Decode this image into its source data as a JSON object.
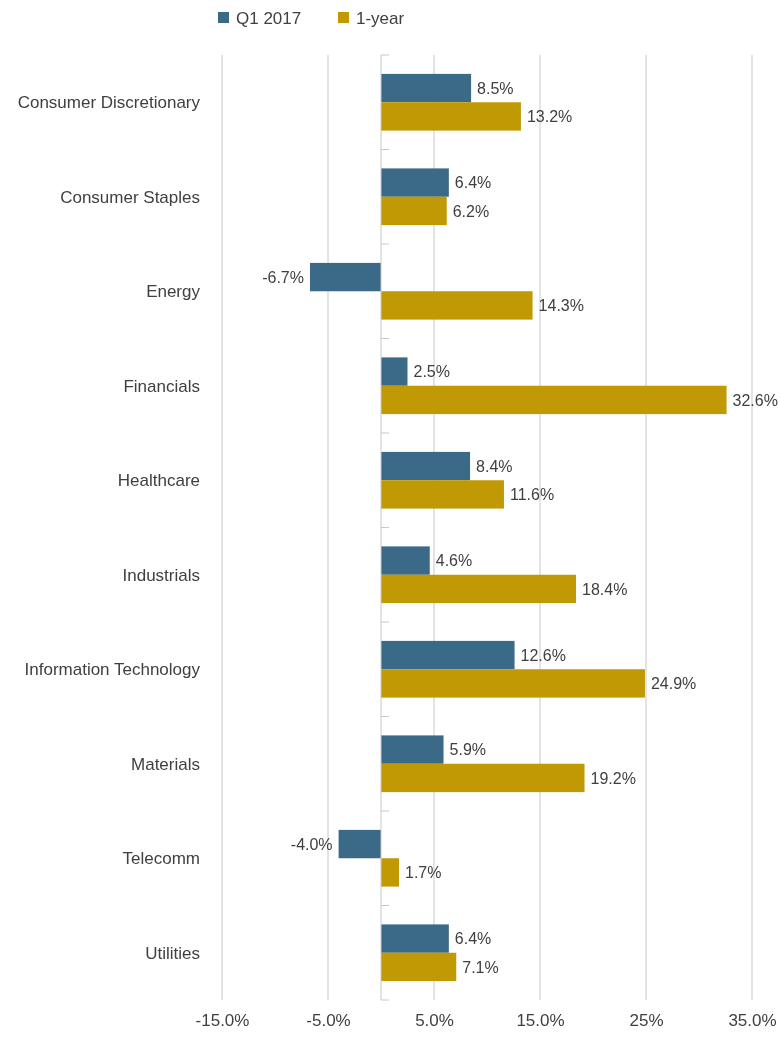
{
  "chart_data": {
    "type": "bar",
    "orientation": "horizontal",
    "categories": [
      "Consumer Discretionary",
      "Consumer Staples",
      "Energy",
      "Financials",
      "Healthcare",
      "Industrials",
      "Information Technology",
      "Materials",
      "Telecomm",
      "Utilities"
    ],
    "series": [
      {
        "name": "Q1 2017",
        "color": "#3b6a89",
        "values": [
          8.5,
          6.4,
          -6.7,
          2.5,
          8.4,
          4.6,
          12.6,
          5.9,
          -4.0,
          6.4
        ],
        "value_labels": [
          "8.5%",
          "6.4%",
          "-6.7%",
          "2.5%",
          "8.4%",
          "4.6%",
          "12.6%",
          "5.9%",
          "-4.0%",
          "6.4%"
        ]
      },
      {
        "name": "1-year",
        "color": "#c09904",
        "values": [
          13.2,
          6.2,
          14.3,
          32.6,
          11.6,
          18.4,
          24.9,
          19.2,
          1.7,
          7.1
        ],
        "value_labels": [
          "13.2%",
          "6.2%",
          "14.3%",
          "32.6%",
          "11.6%",
          "18.4%",
          "24.9%",
          "19.2%",
          "1.7%",
          "7.1%"
        ]
      }
    ],
    "xlim": [
      -15,
      35
    ],
    "xticks": [
      {
        "value": -15,
        "label": "-15.0%"
      },
      {
        "value": -5,
        "label": "-5.0%"
      },
      {
        "value": 5,
        "label": "5.0%"
      },
      {
        "value": 15,
        "label": "15.0%"
      },
      {
        "value": 25,
        "label": "25%"
      },
      {
        "value": 35,
        "label": "35.0%"
      }
    ],
    "grid": "x",
    "legend": "top"
  }
}
